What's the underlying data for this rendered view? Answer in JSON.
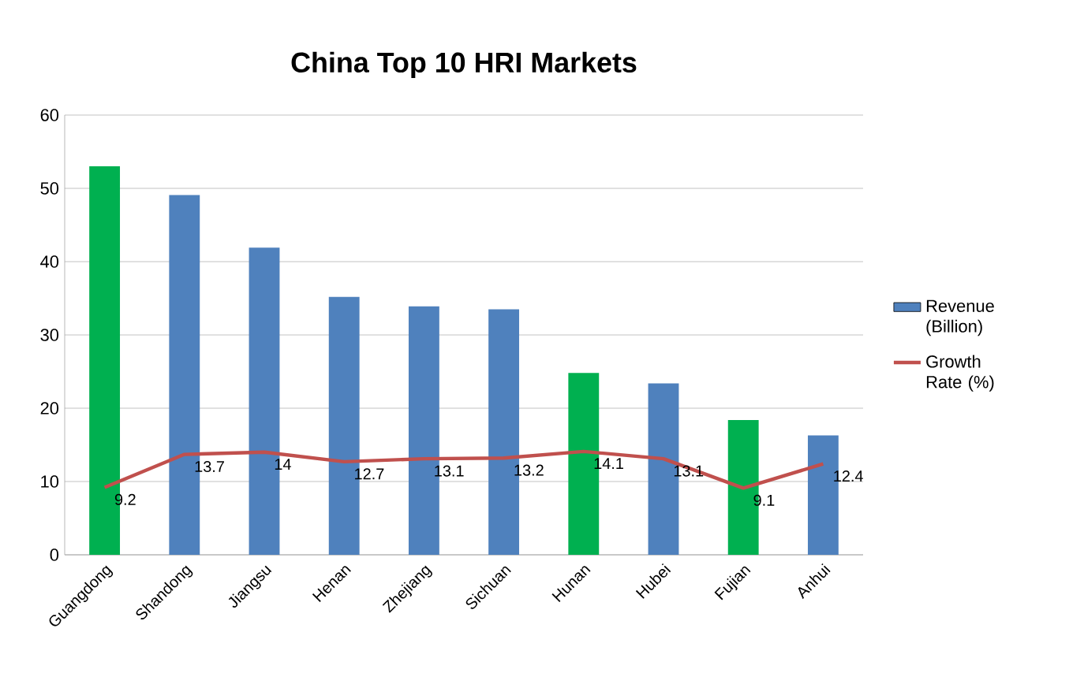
{
  "chart_data": {
    "type": "bar",
    "title": "China Top 10 HRI Markets",
    "categories": [
      "Guangdong",
      "Shandong",
      "Jiangsu",
      "Henan",
      "Zhejiang",
      "Sichuan",
      "Hunan",
      "Hubei",
      "Fujian",
      "Anhui"
    ],
    "series": [
      {
        "name": "Revenue (Billion)",
        "color": "#4f81bd",
        "colors": [
          "#00b050",
          "#4f81bd",
          "#4f81bd",
          "#4f81bd",
          "#4f81bd",
          "#4f81bd",
          "#00b050",
          "#4f81bd",
          "#00b050",
          "#4f81bd"
        ],
        "values": [
          53.0,
          49.1,
          41.9,
          35.2,
          33.9,
          33.5,
          24.8,
          23.4,
          18.4,
          16.3
        ]
      },
      {
        "name": "Growth Rate (%)",
        "type": "line",
        "color": "#c0504d",
        "values": [
          9.2,
          13.7,
          14,
          12.7,
          13.1,
          13.2,
          14.1,
          13.1,
          9.1,
          12.4
        ],
        "value_labels": [
          "9.2",
          "13.7",
          "14",
          "12.7",
          "13.1",
          "13.2",
          "14.1",
          "13.1",
          "9.1",
          "12.4"
        ]
      }
    ],
    "ylim": [
      0,
      60
    ],
    "yticks": [
      0,
      10,
      20,
      30,
      40,
      50,
      60
    ],
    "grid": "y",
    "legend": "right",
    "marker": "none"
  }
}
